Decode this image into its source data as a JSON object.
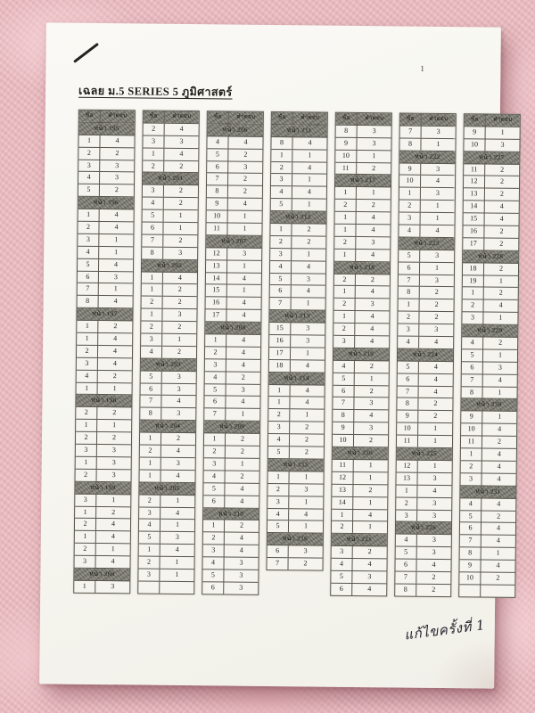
{
  "title": "เฉลย ม.5 SERIES 5 ภูมิศาสตร์",
  "page_number": "1",
  "handwriting_note": "แก้ไขครั้งที่ 1",
  "table_header": {
    "question": "ข้อ",
    "answer": "คำตอบ"
  },
  "page_prefix": "หน้า",
  "tables": [
    {
      "rows": [
        [
          "p",
          "195"
        ],
        [
          "1",
          "4"
        ],
        [
          "2",
          "2"
        ],
        [
          "3",
          "3"
        ],
        [
          "4",
          "3"
        ],
        [
          "5",
          "2"
        ],
        [
          "p",
          "196"
        ],
        [
          "1",
          "4"
        ],
        [
          "2",
          "4"
        ],
        [
          "3",
          "1"
        ],
        [
          "4",
          "1"
        ],
        [
          "5",
          "4"
        ],
        [
          "6",
          "3"
        ],
        [
          "7",
          "1"
        ],
        [
          "8",
          "4"
        ],
        [
          "p",
          "197"
        ],
        [
          "1",
          "2"
        ],
        [
          "1",
          "4"
        ],
        [
          "2",
          "4"
        ],
        [
          "3",
          "4"
        ],
        [
          "4",
          "2"
        ],
        [
          "1",
          "1"
        ],
        [
          "p",
          "198"
        ],
        [
          "2",
          "2"
        ],
        [
          "1",
          "1"
        ],
        [
          "2",
          "2"
        ],
        [
          "3",
          "3"
        ],
        [
          "1",
          "3"
        ],
        [
          "2",
          "3"
        ],
        [
          "p",
          "199"
        ],
        [
          "3",
          "1"
        ],
        [
          "1",
          "2"
        ],
        [
          "2",
          "4"
        ],
        [
          "1",
          "4"
        ],
        [
          "2",
          "1"
        ],
        [
          "3",
          "4"
        ],
        [
          "p",
          "200"
        ],
        [
          "1",
          "3"
        ]
      ]
    },
    {
      "rows": [
        [
          "2",
          "4"
        ],
        [
          "3",
          "3"
        ],
        [
          "1",
          "4"
        ],
        [
          "2",
          "2"
        ],
        [
          "p",
          "201"
        ],
        [
          "3",
          "2"
        ],
        [
          "4",
          "2"
        ],
        [
          "5",
          "1"
        ],
        [
          "6",
          "1"
        ],
        [
          "7",
          "2"
        ],
        [
          "8",
          "3"
        ],
        [
          "p",
          "202"
        ],
        [
          "1",
          "4"
        ],
        [
          "1",
          "2"
        ],
        [
          "2",
          "2"
        ],
        [
          "1",
          "3"
        ],
        [
          "2",
          "2"
        ],
        [
          "3",
          "1"
        ],
        [
          "4",
          "2"
        ],
        [
          "p",
          "203"
        ],
        [
          "5",
          "3"
        ],
        [
          "6",
          "3"
        ],
        [
          "7",
          "4"
        ],
        [
          "8",
          "3"
        ],
        [
          "p",
          "204"
        ],
        [
          "1",
          "2"
        ],
        [
          "2",
          "4"
        ],
        [
          "1",
          "3"
        ],
        [
          "1",
          "4"
        ],
        [
          "p",
          "205"
        ],
        [
          "2",
          "1"
        ],
        [
          "3",
          "4"
        ],
        [
          "4",
          "1"
        ],
        [
          "5",
          "3"
        ],
        [
          "1",
          "4"
        ],
        [
          "2",
          "1"
        ],
        [
          "3",
          "1"
        ],
        [
          "",
          ""
        ]
      ]
    },
    {
      "rows": [
        [
          "p",
          "206"
        ],
        [
          "4",
          "4"
        ],
        [
          "5",
          "2"
        ],
        [
          "6",
          "3"
        ],
        [
          "7",
          "2"
        ],
        [
          "8",
          "2"
        ],
        [
          "9",
          "4"
        ],
        [
          "10",
          "1"
        ],
        [
          "11",
          "1"
        ],
        [
          "p",
          "207"
        ],
        [
          "12",
          "3"
        ],
        [
          "13",
          "1"
        ],
        [
          "14",
          "4"
        ],
        [
          "15",
          "1"
        ],
        [
          "16",
          "4"
        ],
        [
          "17",
          "4"
        ],
        [
          "p",
          "208"
        ],
        [
          "1",
          "4"
        ],
        [
          "2",
          "4"
        ],
        [
          "3",
          "4"
        ],
        [
          "4",
          "2"
        ],
        [
          "5",
          "3"
        ],
        [
          "6",
          "4"
        ],
        [
          "7",
          "1"
        ],
        [
          "p",
          "209"
        ],
        [
          "1",
          "2"
        ],
        [
          "2",
          "2"
        ],
        [
          "3",
          "1"
        ],
        [
          "4",
          "2"
        ],
        [
          "5",
          "4"
        ],
        [
          "6",
          "4"
        ],
        [
          "p",
          "210"
        ],
        [
          "1",
          "2"
        ],
        [
          "2",
          "4"
        ],
        [
          "3",
          "4"
        ],
        [
          "4",
          "3"
        ],
        [
          "5",
          "3"
        ],
        [
          "6",
          "3"
        ]
      ]
    },
    {
      "rows": [
        [
          "p",
          "211"
        ],
        [
          "8",
          "4"
        ],
        [
          "1",
          "1"
        ],
        [
          "2",
          "4"
        ],
        [
          "3",
          "1"
        ],
        [
          "4",
          "4"
        ],
        [
          "5",
          "1"
        ],
        [
          "p",
          "212"
        ],
        [
          "1",
          "2"
        ],
        [
          "2",
          "2"
        ],
        [
          "3",
          "1"
        ],
        [
          "4",
          "4"
        ],
        [
          "5",
          "3"
        ],
        [
          "6",
          "4"
        ],
        [
          "7",
          "1"
        ],
        [
          "p",
          "213"
        ],
        [
          "15",
          "3"
        ],
        [
          "16",
          "3"
        ],
        [
          "17",
          "1"
        ],
        [
          "18",
          "4"
        ],
        [
          "p",
          "214"
        ],
        [
          "1",
          "4"
        ],
        [
          "1",
          "4"
        ],
        [
          "2",
          "1"
        ],
        [
          "3",
          "2"
        ],
        [
          "4",
          "2"
        ],
        [
          "5",
          "2"
        ],
        [
          "p",
          "215"
        ],
        [
          "1",
          "1"
        ],
        [
          "2",
          "3"
        ],
        [
          "3",
          "1"
        ],
        [
          "4",
          "4"
        ],
        [
          "5",
          "1"
        ],
        [
          "p",
          "216"
        ],
        [
          "6",
          "3"
        ],
        [
          "7",
          "2"
        ]
      ]
    },
    {
      "rows": [
        [
          "8",
          "3"
        ],
        [
          "9",
          "3"
        ],
        [
          "10",
          "1"
        ],
        [
          "11",
          "2"
        ],
        [
          "p",
          "217"
        ],
        [
          "1",
          "1"
        ],
        [
          "2",
          "2"
        ],
        [
          "1",
          "4"
        ],
        [
          "1",
          "4"
        ],
        [
          "2",
          "3"
        ],
        [
          "1",
          "4"
        ],
        [
          "p",
          "218"
        ],
        [
          "2",
          "2"
        ],
        [
          "1",
          "4"
        ],
        [
          "2",
          "3"
        ],
        [
          "1",
          "4"
        ],
        [
          "2",
          "4"
        ],
        [
          "3",
          "4"
        ],
        [
          "p",
          "219"
        ],
        [
          "4",
          "2"
        ],
        [
          "5",
          "1"
        ],
        [
          "6",
          "2"
        ],
        [
          "7",
          "3"
        ],
        [
          "8",
          "4"
        ],
        [
          "9",
          "3"
        ],
        [
          "10",
          "2"
        ],
        [
          "p",
          "220"
        ],
        [
          "11",
          "1"
        ],
        [
          "12",
          "1"
        ],
        [
          "13",
          "2"
        ],
        [
          "14",
          "1"
        ],
        [
          "1",
          "4"
        ],
        [
          "2",
          "1"
        ],
        [
          "p",
          "221"
        ],
        [
          "3",
          "2"
        ],
        [
          "4",
          "4"
        ],
        [
          "5",
          "3"
        ],
        [
          "6",
          "4"
        ]
      ]
    },
    {
      "rows": [
        [
          "7",
          "3"
        ],
        [
          "8",
          "1"
        ],
        [
          "p",
          "222"
        ],
        [
          "9",
          "3"
        ],
        [
          "10",
          "4"
        ],
        [
          "1",
          "3"
        ],
        [
          "2",
          "1"
        ],
        [
          "3",
          "1"
        ],
        [
          "4",
          "4"
        ],
        [
          "p",
          "223"
        ],
        [
          "5",
          "3"
        ],
        [
          "6",
          "1"
        ],
        [
          "7",
          "3"
        ],
        [
          "8",
          "2"
        ],
        [
          "1",
          "2"
        ],
        [
          "2",
          "2"
        ],
        [
          "3",
          "3"
        ],
        [
          "4",
          "4"
        ],
        [
          "p",
          "224"
        ],
        [
          "5",
          "4"
        ],
        [
          "6",
          "4"
        ],
        [
          "7",
          "4"
        ],
        [
          "8",
          "2"
        ],
        [
          "9",
          "2"
        ],
        [
          "10",
          "1"
        ],
        [
          "11",
          "1"
        ],
        [
          "p",
          "225"
        ],
        [
          "12",
          "1"
        ],
        [
          "13",
          "3"
        ],
        [
          "1",
          "4"
        ],
        [
          "2",
          "3"
        ],
        [
          "3",
          "3"
        ],
        [
          "p",
          "226"
        ],
        [
          "4",
          "3"
        ],
        [
          "5",
          "3"
        ],
        [
          "6",
          "4"
        ],
        [
          "7",
          "2"
        ],
        [
          "8",
          "2"
        ]
      ]
    },
    {
      "rows": [
        [
          "9",
          "1"
        ],
        [
          "10",
          "3"
        ],
        [
          "p",
          "227"
        ],
        [
          "11",
          "2"
        ],
        [
          "12",
          "2"
        ],
        [
          "13",
          "2"
        ],
        [
          "14",
          "4"
        ],
        [
          "15",
          "4"
        ],
        [
          "16",
          "2"
        ],
        [
          "17",
          "2"
        ],
        [
          "p",
          "228"
        ],
        [
          "18",
          "2"
        ],
        [
          "19",
          "1"
        ],
        [
          "1",
          "2"
        ],
        [
          "2",
          "4"
        ],
        [
          "3",
          "1"
        ],
        [
          "p",
          "229"
        ],
        [
          "4",
          "2"
        ],
        [
          "5",
          "1"
        ],
        [
          "6",
          "3"
        ],
        [
          "7",
          "4"
        ],
        [
          "8",
          "1"
        ],
        [
          "p",
          "230"
        ],
        [
          "9",
          "1"
        ],
        [
          "10",
          "4"
        ],
        [
          "11",
          "2"
        ],
        [
          "1",
          "4"
        ],
        [
          "2",
          "4"
        ],
        [
          "3",
          "4"
        ],
        [
          "p",
          "231"
        ],
        [
          "4",
          "4"
        ],
        [
          "5",
          "2"
        ],
        [
          "6",
          "4"
        ],
        [
          "7",
          "4"
        ],
        [
          "8",
          "1"
        ],
        [
          "9",
          "4"
        ],
        [
          "10",
          "2"
        ],
        [
          "",
          ""
        ]
      ]
    }
  ]
}
